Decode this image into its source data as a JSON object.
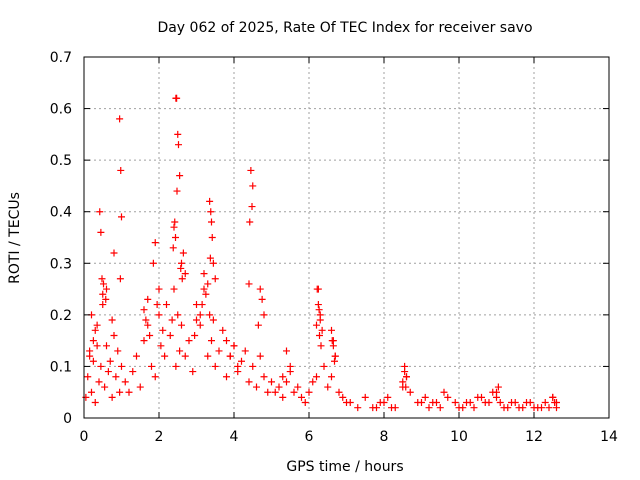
{
  "chart_data": {
    "type": "scatter",
    "title": "Day 062 of 2025, Rate Of TEC Index for receiver savo",
    "xlabel": "GPS time / hours",
    "ylabel": "ROTI / TECUs",
    "xlim": [
      0,
      14
    ],
    "ylim": [
      0,
      0.7
    ],
    "xticks": [
      "0",
      "2",
      "4",
      "6",
      "8",
      "10",
      "12",
      "14"
    ],
    "yticks": [
      "0",
      "0.1",
      "0.2",
      "0.3",
      "0.4",
      "0.5",
      "0.6",
      "0.7"
    ],
    "grid": true,
    "marker": "+",
    "series": [
      {
        "color": "#ff0000",
        "x": [
          0.05,
          0.1,
          0.15,
          0.2,
          0.25,
          0.3,
          0.35,
          0.4,
          0.45,
          0.5,
          0.55,
          0.6,
          0.65,
          0.7,
          0.75,
          0.8,
          0.85,
          0.9,
          0.95,
          1.0,
          0.42,
          0.45,
          0.48,
          0.5,
          0.52,
          0.58,
          0.6,
          0.95,
          0.98,
          1.0,
          0.97,
          0.8,
          0.75,
          0.3,
          0.35,
          0.2,
          0.15,
          0.25,
          1.1,
          1.2,
          1.3,
          1.4,
          1.5,
          1.6,
          1.7,
          1.8,
          1.9,
          2.0,
          2.05,
          2.1,
          2.15,
          2.2,
          2.3,
          2.35,
          2.4,
          2.45,
          2.5,
          2.55,
          2.6,
          2.7,
          2.8,
          2.9,
          2.45,
          2.47,
          2.5,
          2.52,
          2.55,
          2.48,
          2.42,
          2.4,
          2.38,
          2.44,
          2.6,
          2.7,
          2.65,
          2.58,
          2.62,
          1.9,
          1.85,
          1.95,
          2.0,
          1.6,
          1.65,
          1.7,
          1.75,
          3.0,
          3.1,
          3.2,
          3.3,
          3.35,
          3.4,
          3.45,
          3.5,
          3.6,
          3.7,
          3.8,
          3.9,
          4.0,
          4.1,
          4.2,
          4.3,
          4.4,
          4.5,
          4.6,
          4.7,
          4.8,
          4.9,
          5.0,
          3.35,
          3.38,
          3.4,
          3.42,
          3.37,
          3.45,
          3.5,
          3.3,
          3.25,
          3.2,
          3.15,
          3.1,
          3.0,
          2.95,
          4.4,
          4.45,
          4.5,
          4.48,
          4.42,
          4.7,
          4.75,
          4.8,
          4.65,
          3.8,
          3.9,
          4.0,
          4.1,
          5.1,
          5.2,
          5.3,
          5.4,
          5.5,
          5.6,
          5.7,
          5.8,
          5.9,
          6.0,
          6.1,
          6.2,
          6.25,
          6.3,
          6.35,
          6.4,
          6.5,
          6.6,
          6.65,
          6.7,
          6.8,
          6.9,
          7.0,
          6.22,
          6.25,
          6.27,
          6.3,
          6.2,
          6.28,
          6.32,
          6.6,
          6.62,
          6.65,
          6.7,
          6.68,
          5.4,
          5.5,
          5.3,
          7.1,
          7.3,
          7.5,
          7.7,
          7.9,
          8.1,
          8.3,
          8.5,
          8.55,
          8.6,
          8.7,
          8.9,
          9.1,
          9.3,
          9.5,
          9.7,
          9.9,
          10.1,
          10.3,
          10.5,
          10.7,
          10.9,
          11.0,
          11.1,
          11.3,
          11.5,
          11.7,
          11.9,
          12.1,
          12.3,
          12.5,
          12.6,
          8.5,
          8.55,
          8.6,
          8.58,
          9.6,
          10.6,
          11.0,
          11.05,
          12.4,
          12.5,
          12.55,
          12.6,
          7.8,
          8.0,
          8.2,
          9.0,
          9.2,
          9.4,
          10.0,
          10.2,
          10.4,
          10.8,
          11.2,
          11.4,
          11.6,
          11.8,
          12.0,
          12.2
        ],
        "y": [
          0.04,
          0.08,
          0.12,
          0.05,
          0.15,
          0.03,
          0.18,
          0.07,
          0.1,
          0.22,
          0.06,
          0.14,
          0.09,
          0.11,
          0.04,
          0.16,
          0.08,
          0.13,
          0.05,
          0.1,
          0.4,
          0.36,
          0.27,
          0.24,
          0.26,
          0.23,
          0.25,
          0.58,
          0.48,
          0.39,
          0.27,
          0.32,
          0.19,
          0.17,
          0.14,
          0.2,
          0.13,
          0.11,
          0.07,
          0.05,
          0.09,
          0.12,
          0.06,
          0.15,
          0.18,
          0.1,
          0.08,
          0.2,
          0.14,
          0.17,
          0.12,
          0.22,
          0.16,
          0.19,
          0.25,
          0.1,
          0.2,
          0.13,
          0.18,
          0.12,
          0.15,
          0.09,
          0.62,
          0.62,
          0.55,
          0.53,
          0.47,
          0.44,
          0.38,
          0.37,
          0.33,
          0.35,
          0.3,
          0.28,
          0.32,
          0.29,
          0.27,
          0.34,
          0.3,
          0.22,
          0.25,
          0.21,
          0.19,
          0.23,
          0.16,
          0.22,
          0.18,
          0.25,
          0.12,
          0.2,
          0.15,
          0.19,
          0.1,
          0.13,
          0.17,
          0.08,
          0.12,
          0.14,
          0.09,
          0.11,
          0.13,
          0.07,
          0.1,
          0.06,
          0.12,
          0.08,
          0.05,
          0.07,
          0.42,
          0.4,
          0.38,
          0.35,
          0.31,
          0.3,
          0.27,
          0.26,
          0.24,
          0.28,
          0.22,
          0.2,
          0.19,
          0.16,
          0.26,
          0.48,
          0.45,
          0.41,
          0.38,
          0.25,
          0.23,
          0.2,
          0.18,
          0.15,
          0.12,
          0.14,
          0.1,
          0.05,
          0.06,
          0.04,
          0.07,
          0.1,
          0.05,
          0.06,
          0.04,
          0.03,
          0.05,
          0.07,
          0.08,
          0.25,
          0.2,
          0.17,
          0.1,
          0.06,
          0.08,
          0.15,
          0.12,
          0.05,
          0.04,
          0.03,
          0.25,
          0.22,
          0.21,
          0.19,
          0.18,
          0.16,
          0.14,
          0.17,
          0.15,
          0.14,
          0.12,
          0.11,
          0.13,
          0.09,
          0.08,
          0.03,
          0.02,
          0.04,
          0.02,
          0.03,
          0.04,
          0.02,
          0.06,
          0.09,
          0.08,
          0.05,
          0.03,
          0.04,
          0.03,
          0.02,
          0.04,
          0.03,
          0.02,
          0.03,
          0.04,
          0.03,
          0.05,
          0.04,
          0.03,
          0.02,
          0.03,
          0.02,
          0.03,
          0.02,
          0.03,
          0.04,
          0.03,
          0.07,
          0.1,
          0.08,
          0.06,
          0.05,
          0.04,
          0.05,
          0.06,
          0.02,
          0.04,
          0.03,
          0.02,
          0.02,
          0.03,
          0.02,
          0.03,
          0.02,
          0.03,
          0.02,
          0.03,
          0.02,
          0.03,
          0.02,
          0.03,
          0.02,
          0.03,
          0.02,
          0.02
        ]
      }
    ]
  }
}
